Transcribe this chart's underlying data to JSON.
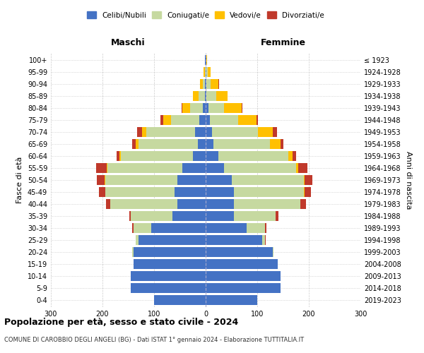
{
  "age_groups": [
    "0-4",
    "5-9",
    "10-14",
    "15-19",
    "20-24",
    "25-29",
    "30-34",
    "35-39",
    "40-44",
    "45-49",
    "50-54",
    "55-59",
    "60-64",
    "65-69",
    "70-74",
    "75-79",
    "80-84",
    "85-89",
    "90-94",
    "95-99",
    "100+"
  ],
  "birth_years": [
    "2019-2023",
    "2014-2018",
    "2009-2013",
    "2004-2008",
    "1999-2003",
    "1994-1998",
    "1989-1993",
    "1984-1988",
    "1979-1983",
    "1974-1978",
    "1969-1973",
    "1964-1968",
    "1959-1963",
    "1954-1958",
    "1949-1953",
    "1944-1948",
    "1939-1943",
    "1934-1938",
    "1929-1933",
    "1924-1928",
    "≤ 1923"
  ],
  "males": {
    "celibi": [
      100,
      145,
      145,
      140,
      140,
      130,
      105,
      65,
      55,
      60,
      55,
      45,
      25,
      15,
      20,
      12,
      5,
      2,
      1,
      0,
      1
    ],
    "coniugati": [
      0,
      0,
      0,
      0,
      2,
      5,
      35,
      80,
      130,
      135,
      140,
      145,
      140,
      115,
      95,
      55,
      25,
      12,
      5,
      2,
      1
    ],
    "vedovi": [
      0,
      0,
      0,
      0,
      0,
      0,
      0,
      0,
      0,
      0,
      1,
      2,
      2,
      5,
      8,
      15,
      15,
      10,
      5,
      2,
      0
    ],
    "divorziati": [
      0,
      0,
      0,
      0,
      0,
      0,
      3,
      3,
      8,
      12,
      15,
      20,
      5,
      8,
      10,
      5,
      2,
      0,
      0,
      0,
      0
    ]
  },
  "females": {
    "nubili": [
      100,
      145,
      145,
      140,
      130,
      110,
      80,
      55,
      55,
      55,
      50,
      35,
      25,
      15,
      12,
      8,
      5,
      2,
      2,
      1,
      1
    ],
    "coniugate": [
      0,
      0,
      0,
      0,
      2,
      5,
      35,
      80,
      128,
      135,
      140,
      140,
      135,
      110,
      90,
      55,
      30,
      18,
      8,
      3,
      1
    ],
    "vedove": [
      0,
      0,
      0,
      0,
      0,
      0,
      0,
      1,
      1,
      2,
      2,
      4,
      8,
      20,
      28,
      35,
      35,
      22,
      15,
      5,
      1
    ],
    "divorziate": [
      0,
      0,
      0,
      0,
      0,
      1,
      3,
      5,
      10,
      12,
      15,
      18,
      8,
      5,
      8,
      3,
      1,
      1,
      1,
      0,
      0
    ]
  },
  "colors": {
    "celibi_nubili": "#4472C4",
    "coniugati": "#C6D9A0",
    "vedovi": "#FFC000",
    "divorziati": "#C0392B"
  },
  "title": "Popolazione per età, sesso e stato civile - 2024",
  "subtitle": "COMUNE DI CAROBBIO DEGLI ANGELI (BG) - Dati ISTAT 1° gennaio 2024 - Elaborazione TUTTITALIA.IT",
  "xlabel_left": "Maschi",
  "xlabel_right": "Femmine",
  "ylabel_left": "Fasce di età",
  "ylabel_right": "Anni di nascita",
  "xlim": 300,
  "xticks": [
    -300,
    -200,
    -100,
    0,
    100,
    200,
    300
  ],
  "xticklabels": [
    "300",
    "200",
    "100",
    "0",
    "100",
    "200",
    "300"
  ]
}
